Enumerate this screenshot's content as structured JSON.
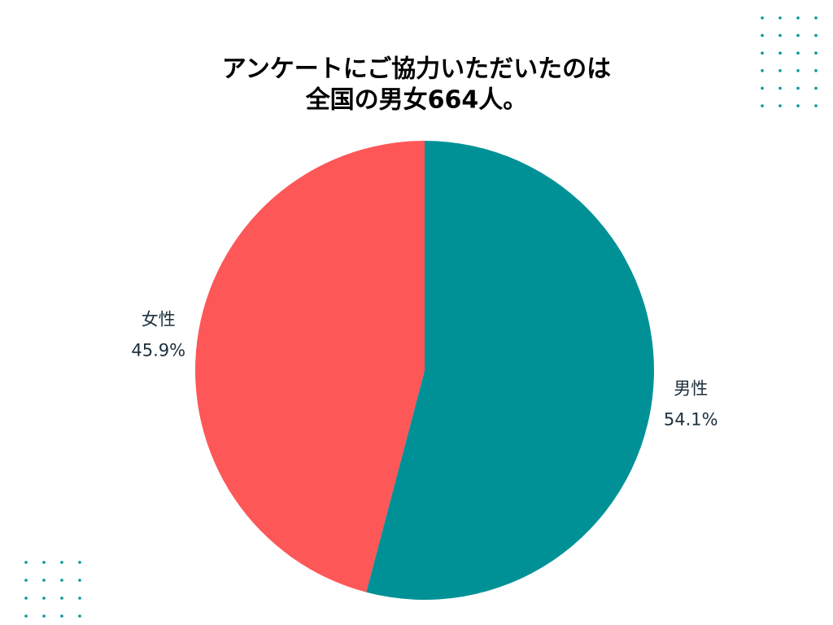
{
  "chart_data": {
    "type": "pie",
    "title": [
      "アンケートにご協力いただいたのは",
      "全国の男女664人。"
    ],
    "categories": [
      "男性",
      "女性"
    ],
    "values": [
      54.1,
      45.9
    ],
    "value_labels": [
      "54.1%",
      "45.9%"
    ],
    "colors": [
      "#009197",
      "#fe5758"
    ]
  }
}
